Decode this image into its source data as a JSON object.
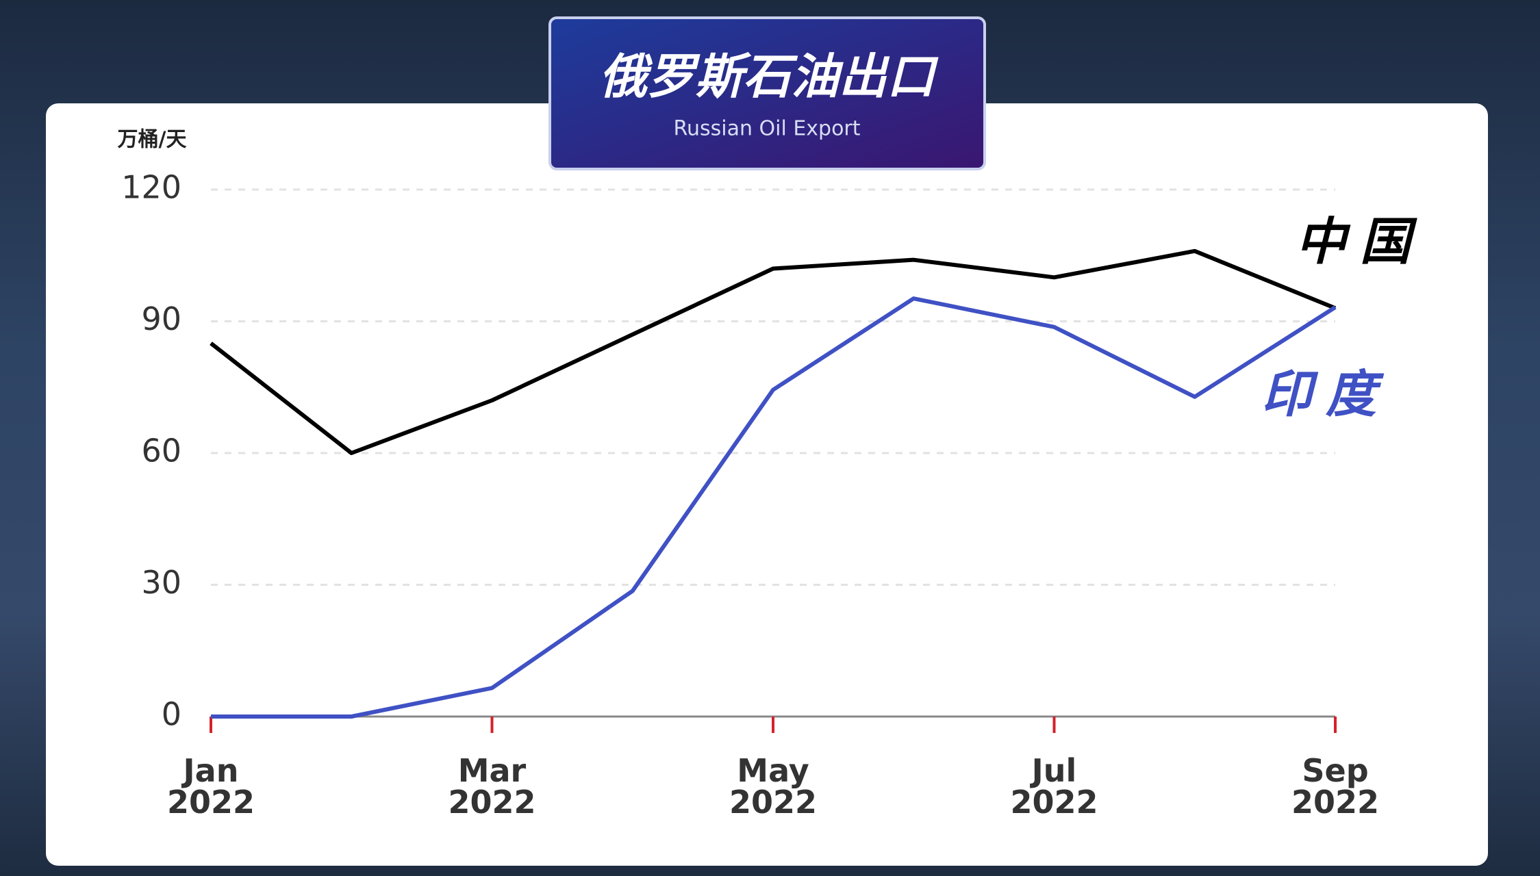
{
  "chart_data": {
    "type": "line",
    "title": "俄罗斯石油出口",
    "subtitle": "Russian Oil Export",
    "y_label": "万桶/天",
    "x": [
      "2022-01",
      "2022-02",
      "2022-03",
      "2022-04",
      "2022-05",
      "2022-06",
      "2022-07",
      "2022-08",
      "2022-09"
    ],
    "series": [
      {
        "name": "中国",
        "color": "#000000",
        "values": [
          85,
          60,
          72,
          87,
          102,
          104,
          100,
          106,
          93
        ]
      },
      {
        "name": "印度",
        "color": "#3f51c4",
        "values": [
          0,
          0,
          6.5,
          28.6,
          74.4,
          95.2,
          88.7,
          72.8,
          93.2
        ]
      }
    ],
    "ylim": [
      0,
      120
    ],
    "yticks": [
      0,
      30,
      60,
      90,
      120
    ],
    "xlim": [
      "2022-01",
      "2022-09"
    ],
    "xticks": [
      {
        "value": "2022-01",
        "label": [
          "Jan",
          "2022"
        ]
      },
      {
        "value": "2022-03",
        "label": [
          "Mar",
          "2022"
        ]
      },
      {
        "value": "2022-05",
        "label": [
          "May",
          "2022"
        ]
      },
      {
        "value": "2022-07",
        "label": [
          "Jul",
          "2022"
        ]
      },
      {
        "value": "2022-09",
        "label": [
          "Sep",
          "2022"
        ]
      }
    ],
    "grid": true
  }
}
